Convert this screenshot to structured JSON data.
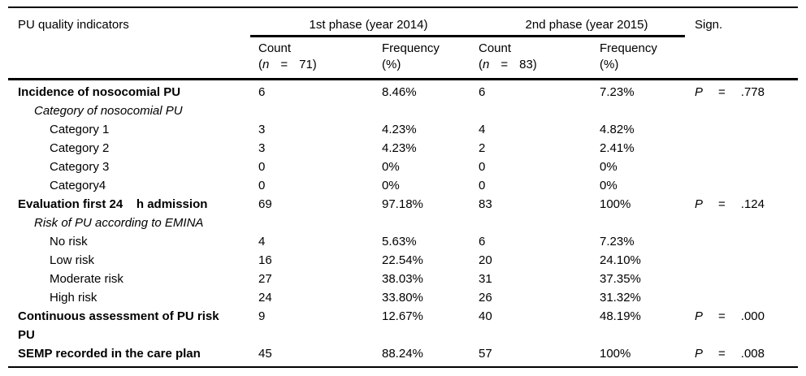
{
  "table": {
    "title_col_header": "PU quality indicators",
    "phase1_header": "1st phase (year 2014)",
    "phase2_header": "2nd phase (year 2015)",
    "sign_header": "Sign.",
    "count_label": "Count",
    "frequency_label": "Frequency",
    "frequency_unit": "(%)",
    "open_paren": "(",
    "close_paren": ")",
    "n_symbol": "n",
    "eq_symbol": "=",
    "n1": "71",
    "n2": "83",
    "p_symbol": "P",
    "rows": [
      {
        "label": "Incidence of nosocomial PU",
        "style": "bold",
        "count1": "6",
        "freq1": "8.46%",
        "count2": "6",
        "freq2": "7.23%",
        "sig": ".778"
      },
      {
        "label": "Category of nosocomial PU",
        "style": "subhead",
        "count1": "",
        "freq1": "",
        "count2": "",
        "freq2": "",
        "sig": null
      },
      {
        "label": "Category 1",
        "style": "item",
        "count1": "3",
        "freq1": "4.23%",
        "count2": "4",
        "freq2": "4.82%",
        "sig": null
      },
      {
        "label": "Category 2",
        "style": "item",
        "count1": "3",
        "freq1": "4.23%",
        "count2": "2",
        "freq2": "2.41%",
        "sig": null
      },
      {
        "label": "Category 3",
        "style": "item",
        "count1": "0",
        "freq1": "0%",
        "count2": "0",
        "freq2": "0%",
        "sig": null
      },
      {
        "label": "Category4",
        "style": "item",
        "count1": "0",
        "freq1": "0%",
        "count2": "0",
        "freq2": "0%",
        "sig": null
      },
      {
        "label": "Evaluation first 24    h admission",
        "style": "bold",
        "count1": "69",
        "freq1": "97.18%",
        "count2": "83",
        "freq2": "100%",
        "sig": ".124"
      },
      {
        "label": "Risk of PU according to EMINA",
        "style": "subhead",
        "count1": "",
        "freq1": "",
        "count2": "",
        "freq2": "",
        "sig": null
      },
      {
        "label": "No risk",
        "style": "item",
        "count1": "4",
        "freq1": "5.63%",
        "count2": "6",
        "freq2": "7.23%",
        "sig": null
      },
      {
        "label": "Low risk",
        "style": "item",
        "count1": "16",
        "freq1": "22.54%",
        "count2": "20",
        "freq2": "24.10%",
        "sig": null
      },
      {
        "label": "Moderate risk",
        "style": "item",
        "count1": "27",
        "freq1": "38.03%",
        "count2": "31",
        "freq2": "37.35%",
        "sig": null
      },
      {
        "label": "High risk",
        "style": "item",
        "count1": "24",
        "freq1": "33.80%",
        "count2": "26",
        "freq2": "31.32%",
        "sig": null
      },
      {
        "label": "Continuous assessment of PU risk\nPU",
        "style": "bold",
        "count1": "9",
        "freq1": "12.67%",
        "count2": "40",
        "freq2": "48.19%",
        "sig": ".000"
      },
      {
        "label": "SEMP recorded in the care plan",
        "style": "bold",
        "count1": "45",
        "freq1": "88.24%",
        "count2": "57",
        "freq2": "100%",
        "sig": ".008"
      }
    ]
  }
}
